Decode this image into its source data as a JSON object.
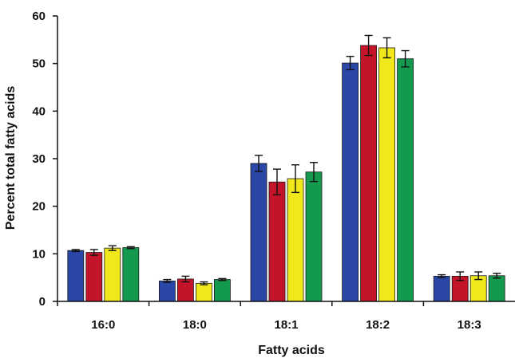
{
  "chart_data": {
    "type": "bar",
    "title": "",
    "xlabel": "Fatty acids",
    "ylabel": "Percent total fatty acids",
    "ylim": [
      0,
      60
    ],
    "yticks": [
      0,
      10,
      20,
      30,
      40,
      50,
      60
    ],
    "grid": false,
    "categories": [
      "16:0",
      "18:0",
      "18:1",
      "18:2",
      "18:3"
    ],
    "series": [
      {
        "color": "#2a46a6",
        "values": [
          10.7,
          4.3,
          29.0,
          50.1,
          5.3
        ],
        "errors": [
          0.2,
          0.3,
          1.7,
          1.4,
          0.3
        ]
      },
      {
        "color": "#c4142a",
        "values": [
          10.3,
          4.7,
          25.1,
          53.8,
          5.3
        ],
        "errors": [
          0.6,
          0.6,
          2.7,
          2.1,
          0.9
        ]
      },
      {
        "color": "#f0e81a",
        "values": [
          11.2,
          3.8,
          25.8,
          53.3,
          5.4
        ],
        "errors": [
          0.5,
          0.3,
          2.9,
          2.1,
          0.8
        ]
      },
      {
        "color": "#139a4e",
        "values": [
          11.3,
          4.6,
          27.2,
          51.0,
          5.4
        ],
        "errors": [
          0.2,
          0.2,
          2.0,
          1.7,
          0.5
        ]
      }
    ]
  }
}
